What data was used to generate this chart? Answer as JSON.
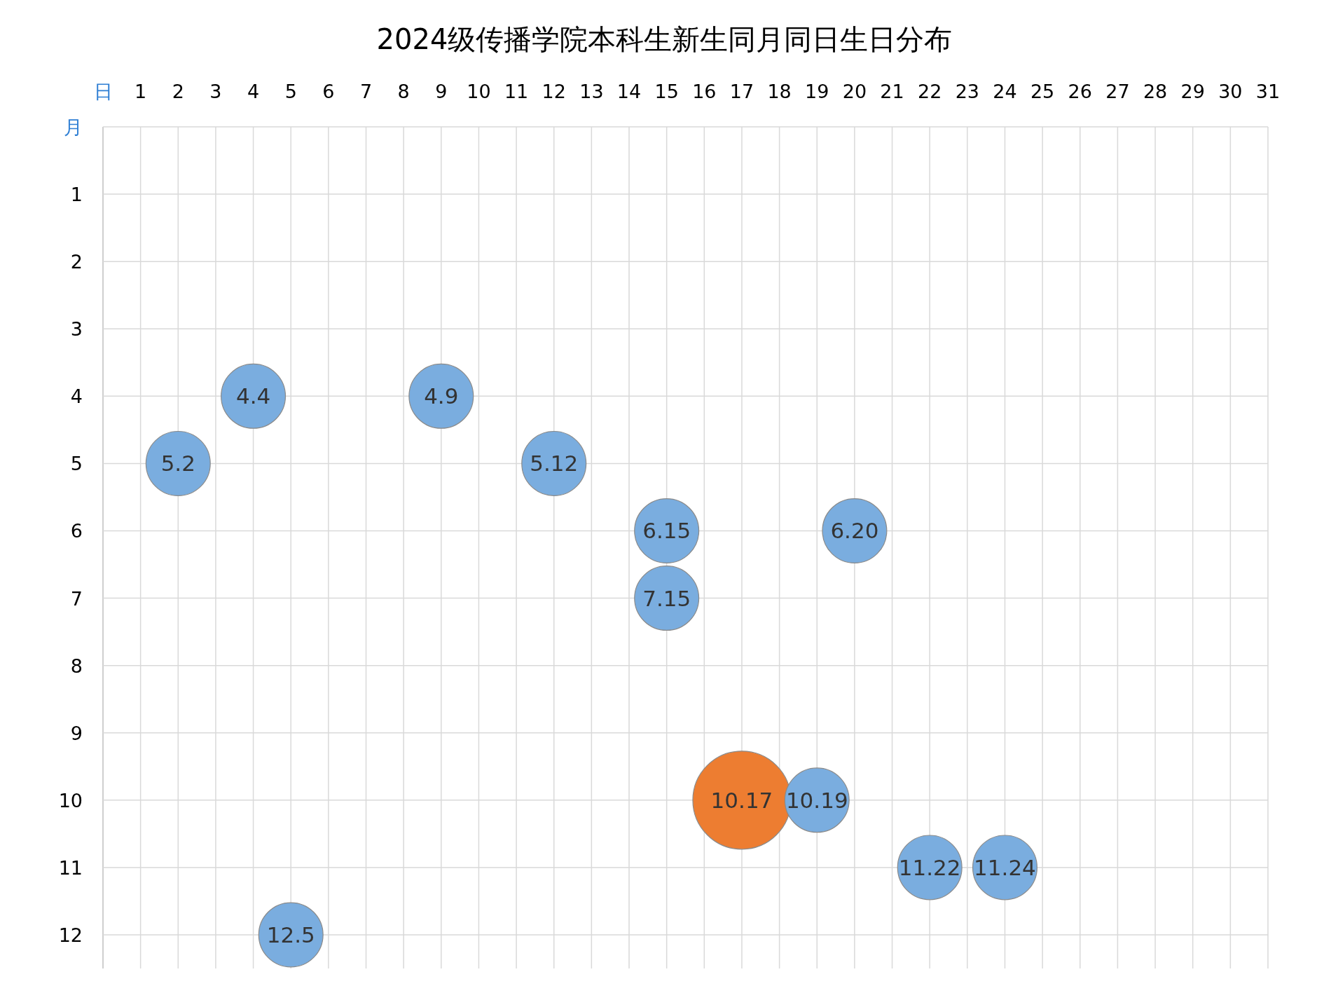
{
  "chart_data": {
    "type": "bubble",
    "title": "2024级传播学院本科生新生同月同日生日分布",
    "x": [
      4,
      9,
      2,
      12,
      15,
      20,
      15,
      17,
      19,
      22,
      24,
      5
    ],
    "values": [
      4,
      4,
      5,
      5,
      6,
      6,
      7,
      10,
      10,
      11,
      11,
      12
    ],
    "sizes": [
      0.43,
      0.43,
      0.43,
      0.43,
      0.43,
      0.43,
      0.43,
      1,
      0.43,
      0.43,
      0.43,
      0.43
    ],
    "colors": [
      "#7aaddf",
      "#7aaddf",
      "#7aaddf",
      "#7aaddf",
      "#7aaddf",
      "#7aaddf",
      "#7aaddf",
      "#ed7d31",
      "#7aaddf",
      "#7aaddf",
      "#7aaddf",
      "#7aaddf"
    ],
    "annotations": [
      {
        "text": "4.4",
        "x": 4,
        "y": 4
      },
      {
        "text": "4.9",
        "x": 9,
        "y": 4
      },
      {
        "text": "5.2",
        "x": 2,
        "y": 5
      },
      {
        "text": "5.12",
        "x": 12,
        "y": 5
      },
      {
        "text": "6.15",
        "x": 15,
        "y": 6
      },
      {
        "text": "6.20",
        "x": 20,
        "y": 6
      },
      {
        "text": "7.15",
        "x": 15,
        "y": 7
      },
      {
        "text": "10.17",
        "x": 17,
        "y": 10
      },
      {
        "text": "10.19",
        "x": 19,
        "y": 10
      },
      {
        "text": "11.22",
        "x": 22,
        "y": 11
      },
      {
        "text": "11.24",
        "x": 24,
        "y": 11
      },
      {
        "text": "12.5",
        "x": 5,
        "y": 12
      }
    ],
    "xlim": [
      0,
      31
    ],
    "xticks": [
      {
        "value": 0,
        "label": "日"
      },
      1,
      2,
      3,
      4,
      5,
      6,
      7,
      8,
      9,
      10,
      11,
      12,
      13,
      14,
      15,
      16,
      17,
      18,
      19,
      20,
      21,
      22,
      23,
      24,
      25,
      26,
      27,
      28,
      29,
      30,
      31
    ],
    "ylim": [
      12.5,
      0
    ],
    "yticks": [
      {
        "value": 0,
        "label": "月"
      },
      1,
      2,
      3,
      4,
      5,
      6,
      7,
      8,
      9,
      10,
      11,
      12
    ],
    "grid": true
  }
}
